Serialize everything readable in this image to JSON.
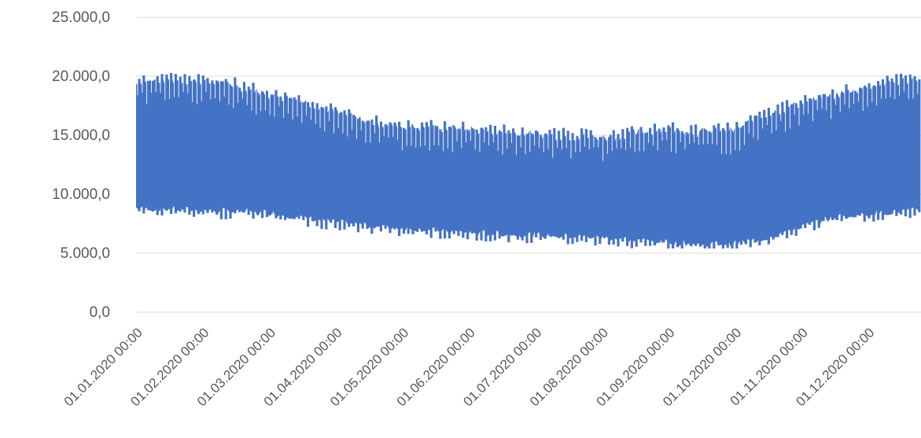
{
  "chart_data": {
    "type": "area",
    "title": "",
    "xlabel": "",
    "ylabel": "",
    "ylim": [
      0,
      25000
    ],
    "y_ticks": [
      "0,0",
      "5.000,0",
      "10.000,0",
      "15.000,0",
      "20.000,0",
      "25.000,0"
    ],
    "y_tick_values": [
      0,
      5000,
      10000,
      15000,
      20000,
      25000
    ],
    "x_ticks": [
      "01.01.2020 00:00",
      "01.02.2020 00:00",
      "01.03.2020 00:00",
      "01.04.2020 00:00",
      "01.05.2020 00:00",
      "01.06.2020 00:00",
      "01.07.2020 00:00",
      "01.08.2020 00:00",
      "01.09.2020 00:00",
      "01.10.2020 00:00",
      "01.11.2020 00:00",
      "01.12.2020 00:00"
    ],
    "grid": true,
    "legend": "none",
    "series_color": "#4472c4",
    "envelope": {
      "x": [
        "01.01.2020",
        "15.01.2020",
        "01.02.2020",
        "15.02.2020",
        "01.03.2020",
        "15.03.2020",
        "01.04.2020",
        "15.04.2020",
        "01.05.2020",
        "15.05.2020",
        "01.06.2020",
        "15.06.2020",
        "01.07.2020",
        "15.07.2020",
        "01.08.2020",
        "15.08.2020",
        "01.09.2020",
        "15.09.2020",
        "01.10.2020",
        "15.10.2020",
        "01.11.2020",
        "15.11.2020",
        "01.12.2020",
        "15.12.2020",
        "31.12.2020"
      ],
      "max": [
        19500,
        19800,
        19600,
        19300,
        18500,
        18100,
        17000,
        16200,
        15800,
        15700,
        15600,
        15300,
        15200,
        15000,
        14900,
        15200,
        15600,
        15300,
        15500,
        16800,
        17800,
        18400,
        19200,
        19600,
        20200
      ],
      "min": [
        8800,
        8700,
        8600,
        8500,
        8400,
        8000,
        7600,
        7300,
        7100,
        6900,
        6700,
        6600,
        6500,
        6400,
        6300,
        6100,
        5900,
        5700,
        5800,
        6200,
        7200,
        8000,
        8300,
        8500,
        8600
      ]
    }
  }
}
